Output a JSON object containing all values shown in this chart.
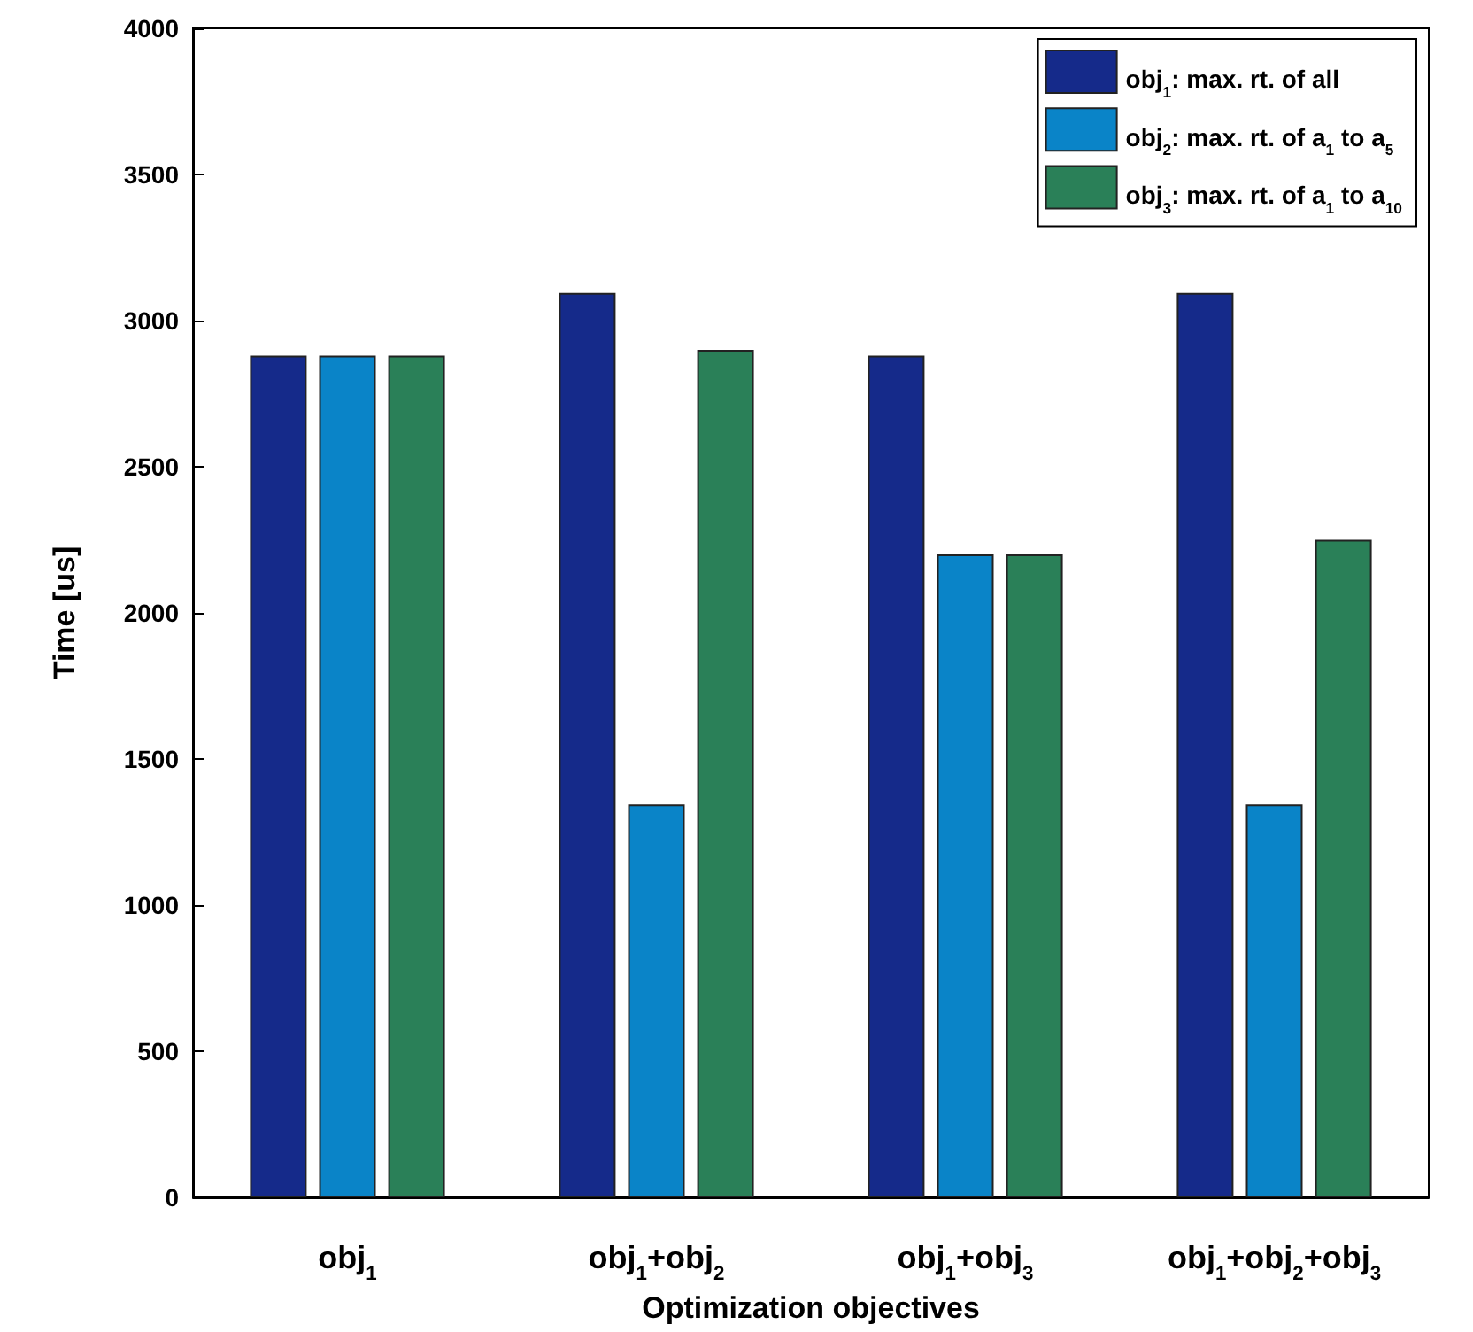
{
  "chart_data": {
    "type": "bar",
    "xlabel": "Optimization objectives",
    "ylabel": "Time [us]",
    "categories": [
      "obj$_{1}$",
      "obj$_{1}$+obj$_{2}$",
      "obj$_{1}$+obj$_{3}$",
      "obj$_{1}$+obj$_{2}$+obj$_{3}$"
    ],
    "series": [
      {
        "name": "obj$_{1}$: max. rt. of all",
        "color": "#152a8a",
        "values": [
          2880,
          3095,
          2880,
          3095
        ]
      },
      {
        "name": "obj$_{2}$: max. rt. of a$_{1}$ to a$_{5}$",
        "color": "#0a84c8",
        "values": [
          2880,
          1345,
          2200,
          1345
        ]
      },
      {
        "name": "obj$_{3}$: max. rt. of a$_{1}$ to a$_{10}$",
        "color": "#2a8058",
        "values": [
          2880,
          2900,
          2200,
          2250
        ]
      }
    ],
    "ylim": [
      0,
      4000
    ],
    "yticks": [
      0,
      500,
      1000,
      1500,
      2000,
      2500,
      3000,
      3500,
      4000
    ],
    "grid": false,
    "legend": "top right"
  }
}
